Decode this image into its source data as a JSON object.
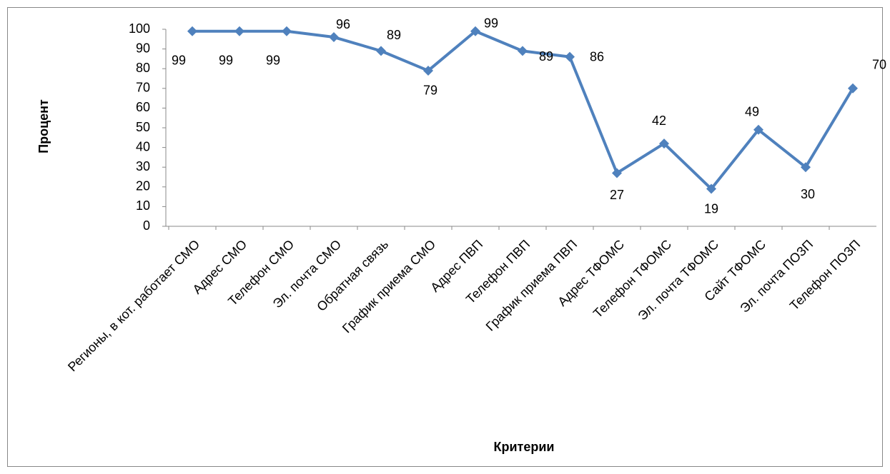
{
  "chart_data": {
    "type": "line",
    "x_label": "Критерии",
    "y_label": "Процент",
    "categories": [
      "Регионы, в кот. работает СМО",
      "Адрес СМО",
      "Телефон СМО",
      "Эл. почта СМО",
      "Обратная связь",
      "График приема СМО",
      "Адрес ПВП",
      "Телефон ПВП",
      "График приема ПВП",
      "Адрес ТФОМС",
      "Телефон ТФОМС",
      "Эл. почта ТФОМС",
      "Сайт ТФОМС",
      "Эл. почта ПОЗП",
      "Телефон ПОЗП"
    ],
    "series": [
      {
        "name": "Процент",
        "color": "#4f81bd",
        "values": [
          99,
          99,
          99,
          96,
          89,
          79,
          99,
          89,
          86,
          27,
          42,
          19,
          49,
          30,
          70
        ]
      }
    ],
    "ylim": [
      0,
      100
    ],
    "yticks": [
      0,
      10,
      20,
      30,
      40,
      50,
      60,
      70,
      80,
      90,
      100
    ]
  }
}
